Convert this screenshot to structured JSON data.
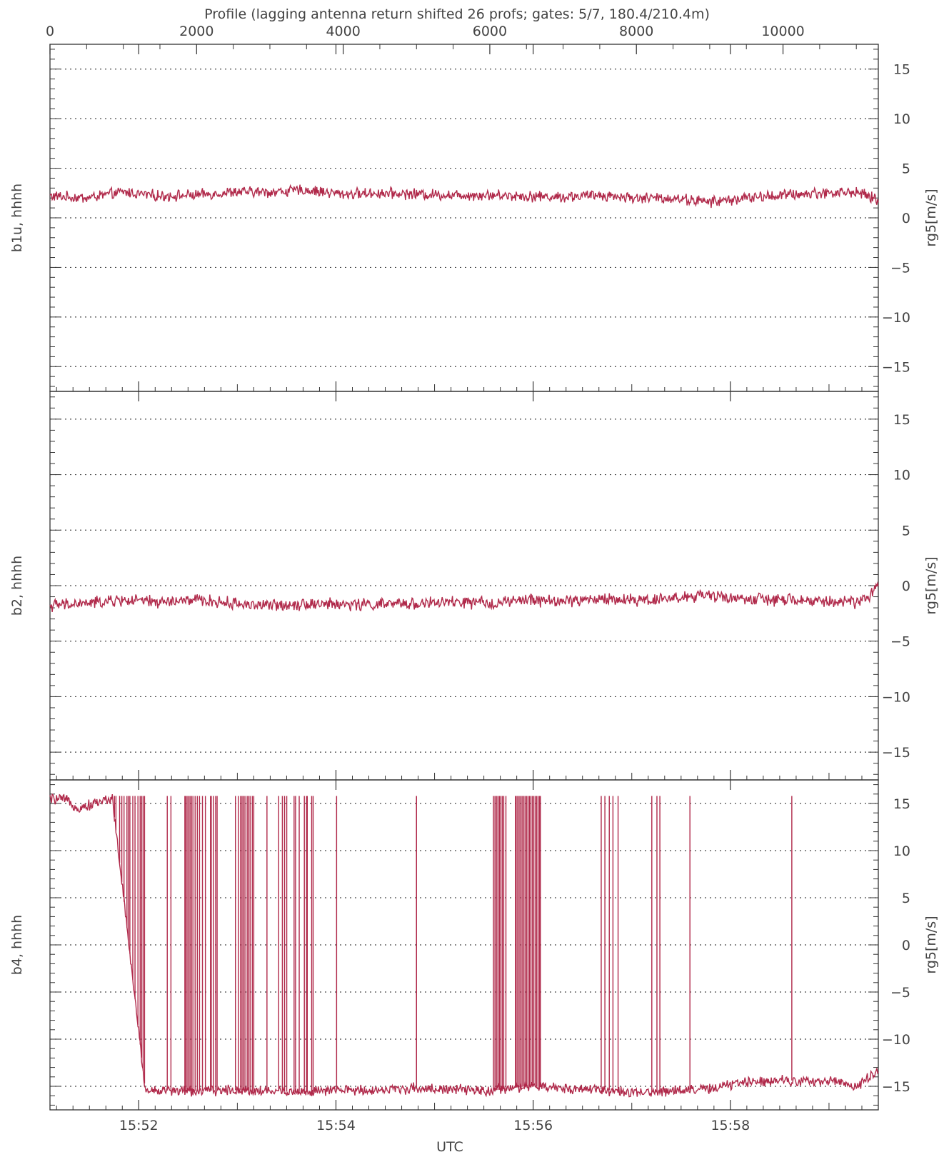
{
  "chart_data": {
    "type": "line",
    "title": "Profile (lagging antenna return shifted 26 profs; gates: 5/7, 180.4/210.4m)",
    "top_axis": {
      "range": [
        0,
        11300
      ],
      "major_ticks": [
        0,
        2000,
        4000,
        6000,
        8000,
        10000
      ],
      "labels": [
        "0",
        "2000",
        "4000",
        "6000",
        "8000",
        "10000"
      ]
    },
    "xlabel": "UTC",
    "x_time_ticks": [
      "15:52",
      "15:54",
      "15:56",
      "15:58"
    ],
    "time_range": [
      "15:51:06",
      "15:59:30"
    ],
    "grid": "horizontal dotted at ±5, ±10, ±15 and 0",
    "line_color": "#b0294a",
    "panels": [
      {
        "name": "b1u, hhhh",
        "ylabel": "rg5[m/s]",
        "ylim": [
          -17.5,
          17.5
        ],
        "yticks": [
          15,
          10,
          5,
          0,
          -5,
          -10,
          -15
        ],
        "ytick_labels": [
          "15",
          "10",
          "5",
          "0",
          "−5",
          "−10",
          "−15"
        ],
        "series_summary": "noisy trace near +2.3 m/s",
        "series": [
          {
            "x": [
              0,
              500,
              1000,
              1500,
              2000,
              2500,
              3000,
              3500,
              4000,
              4500,
              5000,
              5500,
              6000,
              6500,
              7000,
              7500,
              8000,
              8500,
              9000,
              9500,
              10000,
              10500,
              11000,
              11300
            ],
            "y": [
              2.2,
              2.0,
              2.6,
              2.2,
              2.3,
              2.6,
              2.6,
              2.8,
              2.4,
              2.5,
              2.4,
              2.3,
              2.3,
              2.2,
              2.1,
              2.3,
              2.0,
              2.0,
              1.6,
              2.0,
              2.3,
              2.5,
              2.6,
              1.8
            ]
          }
        ]
      },
      {
        "name": "b2, hhhh",
        "ylabel": "rg5[m/s]",
        "ylim": [
          -17.5,
          17.5
        ],
        "yticks": [
          15,
          10,
          5,
          0,
          -5,
          -10,
          -15
        ],
        "ytick_labels": [
          "15",
          "10",
          "5",
          "0",
          "−5",
          "−10",
          "−15"
        ],
        "series_summary": "noisy trace near −1.6 m/s, rising to −0.3 at the end",
        "series": [
          {
            "x": [
              0,
              500,
              1000,
              1500,
              2000,
              2500,
              3000,
              3500,
              4000,
              4500,
              5000,
              5500,
              6000,
              6500,
              7000,
              7500,
              8000,
              8500,
              9000,
              9500,
              10000,
              10500,
              11000,
              11300
            ],
            "y": [
              -1.8,
              -1.6,
              -1.3,
              -1.5,
              -1.3,
              -1.6,
              -1.8,
              -1.6,
              -1.7,
              -1.7,
              -1.6,
              -1.5,
              -1.6,
              -1.3,
              -1.4,
              -1.2,
              -1.3,
              -1.1,
              -0.9,
              -1.2,
              -1.3,
              -1.4,
              -1.5,
              -0.3
            ]
          }
        ]
      },
      {
        "name": "b4, hhhh",
        "ylabel": "rg5[m/s]",
        "ylim": [
          -17.5,
          17.5
        ],
        "yticks": [
          15,
          10,
          5,
          0,
          -5,
          -10,
          -15
        ],
        "ytick_labels": [
          "15",
          "10",
          "5",
          "0",
          "−5",
          "−10",
          "−15"
        ],
        "series_summary": "velocity aliasing: near +15 m/s early, otherwise near −15 m/s with many spikes to +15.8",
        "series": [
          {
            "x": [
              0,
              200,
              400,
              600,
              850,
              1300,
              2000,
              2500,
              3000,
              3500,
              4000,
              4500,
              5000,
              6000,
              6500,
              7000,
              7500,
              8000,
              8500,
              9000,
              9500,
              10000,
              10500,
              10700,
              11000,
              11300
            ],
            "y": [
              15.5,
              15.4,
              14.5,
              15.0,
              15.6,
              -15.4,
              -15.5,
              -15.4,
              -15.5,
              -15.6,
              -15.4,
              -15.4,
              -15.2,
              -15.5,
              -15.0,
              -15.2,
              -15.3,
              -15.8,
              -15.4,
              -15.3,
              -14.5,
              -14.3,
              -14.6,
              -14.3,
              -15.1,
              -13.3
            ]
          }
        ],
        "spike_x": [
          220,
          850,
          880,
          900,
          950,
          980,
          1010,
          1050,
          1070,
          1090,
          1130,
          1160,
          1200,
          1230,
          1250,
          1270,
          1290,
          1600,
          1650,
          1840,
          1850,
          1870,
          1890,
          1910,
          1930,
          1950,
          1980,
          2010,
          2040,
          2080,
          2120,
          2190,
          2200,
          2230,
          2260,
          2280,
          2530,
          2570,
          2600,
          2620,
          2640,
          2660,
          2690,
          2710,
          2730,
          2760,
          2780,
          2960,
          3120,
          3170,
          3200,
          3230,
          3330,
          3350,
          3400,
          3470,
          3500,
          3510,
          3570,
          3590,
          3910,
          5000,
          5000,
          6050,
          6070,
          6090,
          6110,
          6130,
          6150,
          6170,
          6190,
          6220,
          6350,
          6360,
          6380,
          6400,
          6420,
          6440,
          6460,
          6480,
          6500,
          6520,
          6540,
          6560,
          6580,
          6600,
          6620,
          6640,
          6660,
          6680,
          6690,
          7520,
          7570,
          7630,
          7680,
          7750,
          8210,
          8280,
          8320,
          8730,
          10120
        ],
        "spike_top": 15.8
      }
    ]
  }
}
